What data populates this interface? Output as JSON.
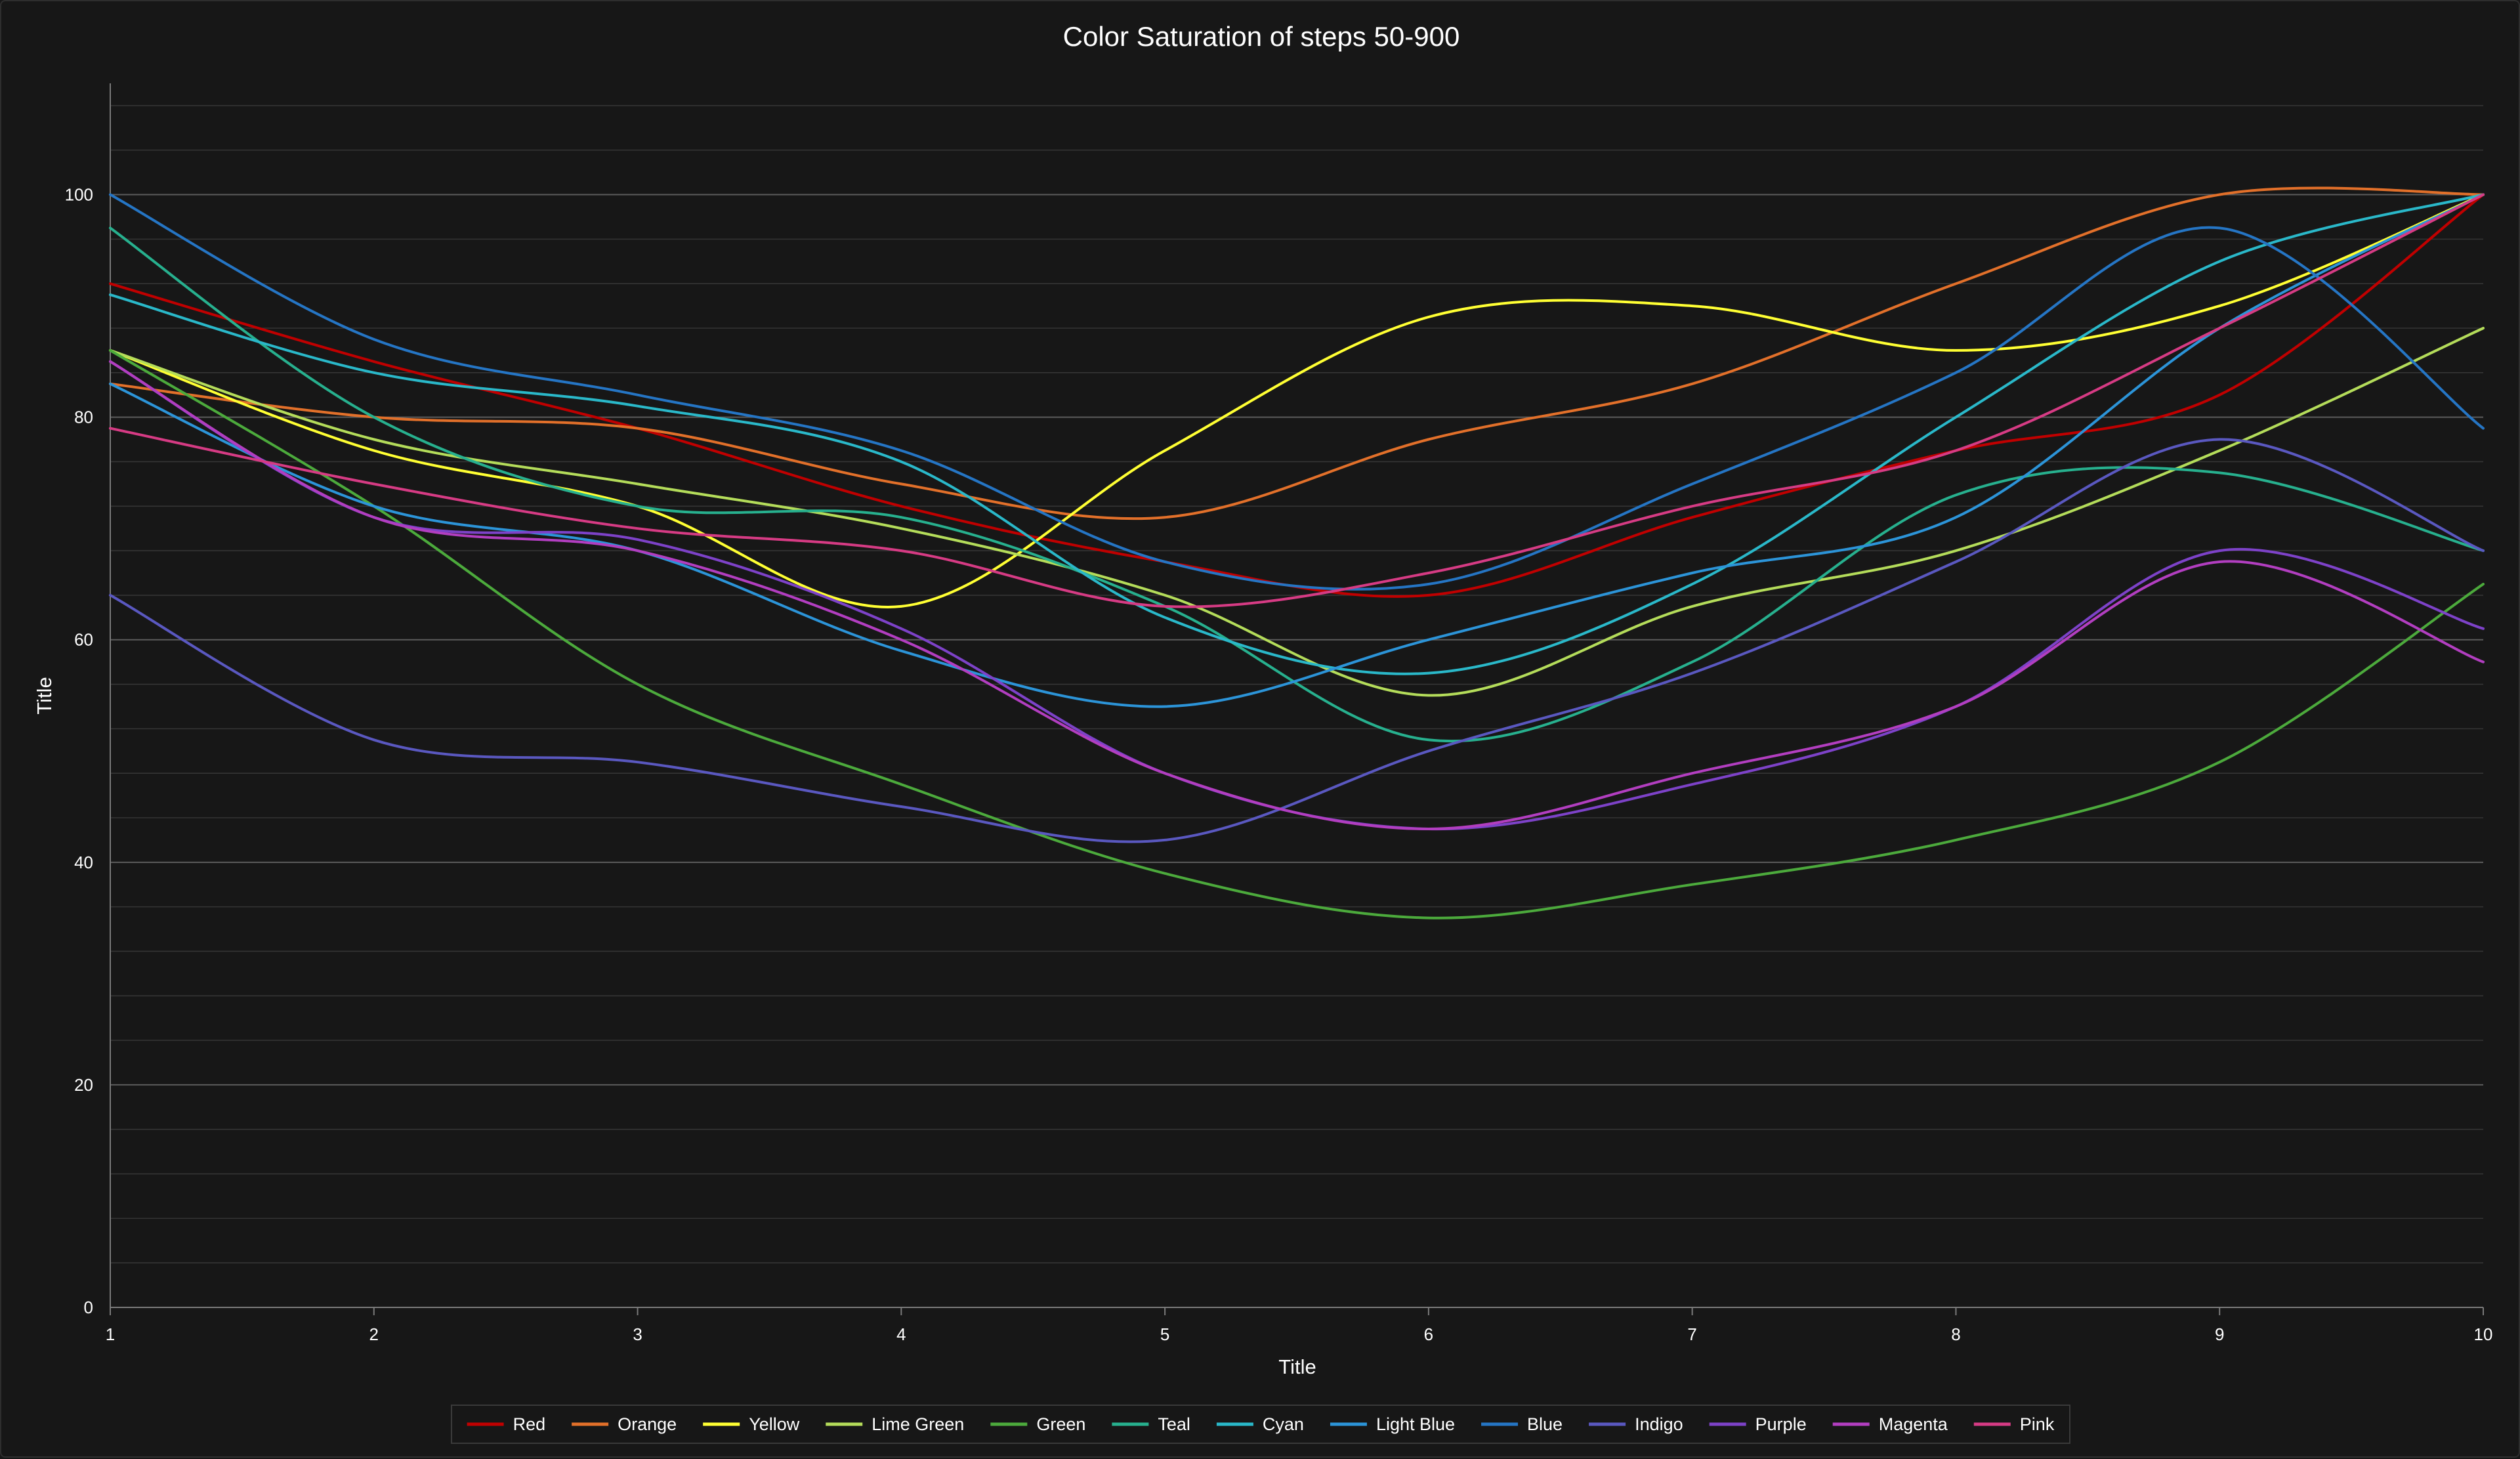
{
  "chart_data": {
    "type": "line",
    "title": "Color Saturation of steps 50-900",
    "xlabel": "Title",
    "ylabel": "Title",
    "x": [
      1,
      2,
      3,
      4,
      5,
      6,
      7,
      8,
      9,
      10
    ],
    "xlim": [
      1,
      10
    ],
    "ylim": [
      0,
      110
    ],
    "y_ticks": [
      0,
      20,
      40,
      60,
      80,
      100
    ],
    "y_minor_step": 4,
    "grid": true,
    "smooth": true,
    "legend_position": "bottom",
    "series": [
      {
        "name": "Red",
        "color": "#c00000",
        "values": [
          92,
          85,
          79,
          72,
          67,
          64,
          71,
          77,
          82,
          100
        ]
      },
      {
        "name": "Orange",
        "color": "#e2702a",
        "values": [
          83,
          80,
          79,
          74,
          71,
          78,
          83,
          92,
          100,
          100
        ]
      },
      {
        "name": "Yellow",
        "color": "#ffff33",
        "values": [
          86,
          77,
          72,
          63,
          77,
          89,
          90,
          86,
          90,
          100
        ]
      },
      {
        "name": "Lime Green",
        "color": "#b4dc5a",
        "values": [
          86,
          78,
          74,
          70,
          64,
          55,
          63,
          68,
          77,
          88
        ]
      },
      {
        "name": "Green",
        "color": "#4caa3c",
        "values": [
          86,
          72,
          56,
          47,
          39,
          35,
          38,
          42,
          49,
          65
        ]
      },
      {
        "name": "Teal",
        "color": "#27b08e",
        "values": [
          97,
          80,
          72,
          71,
          63,
          51,
          58,
          73,
          75,
          68
        ]
      },
      {
        "name": "Cyan",
        "color": "#2ab8c9",
        "values": [
          91,
          84,
          81,
          76,
          62,
          57,
          65,
          80,
          94,
          100
        ]
      },
      {
        "name": "Light Blue",
        "color": "#2c94d8",
        "values": [
          83,
          72,
          68,
          59,
          54,
          60,
          66,
          71,
          88,
          100
        ]
      },
      {
        "name": "Blue",
        "color": "#2575c4",
        "values": [
          100,
          87,
          82,
          77,
          67,
          65,
          74,
          84,
          97,
          79
        ]
      },
      {
        "name": "Indigo",
        "color": "#5a58c0",
        "values": [
          64,
          51,
          49,
          45,
          42,
          50,
          57,
          67,
          78,
          68
        ]
      },
      {
        "name": "Purple",
        "color": "#7d42c8",
        "values": [
          85,
          71,
          69,
          61,
          48,
          43,
          47,
          54,
          68,
          61
        ]
      },
      {
        "name": "Magenta",
        "color": "#b23ec0",
        "values": [
          85,
          71,
          68,
          60,
          48,
          43,
          48,
          54,
          67,
          58
        ]
      },
      {
        "name": "Pink",
        "color": "#d63b84",
        "values": [
          79,
          74,
          70,
          68,
          63,
          66,
          72,
          77,
          88,
          100
        ]
      }
    ]
  }
}
